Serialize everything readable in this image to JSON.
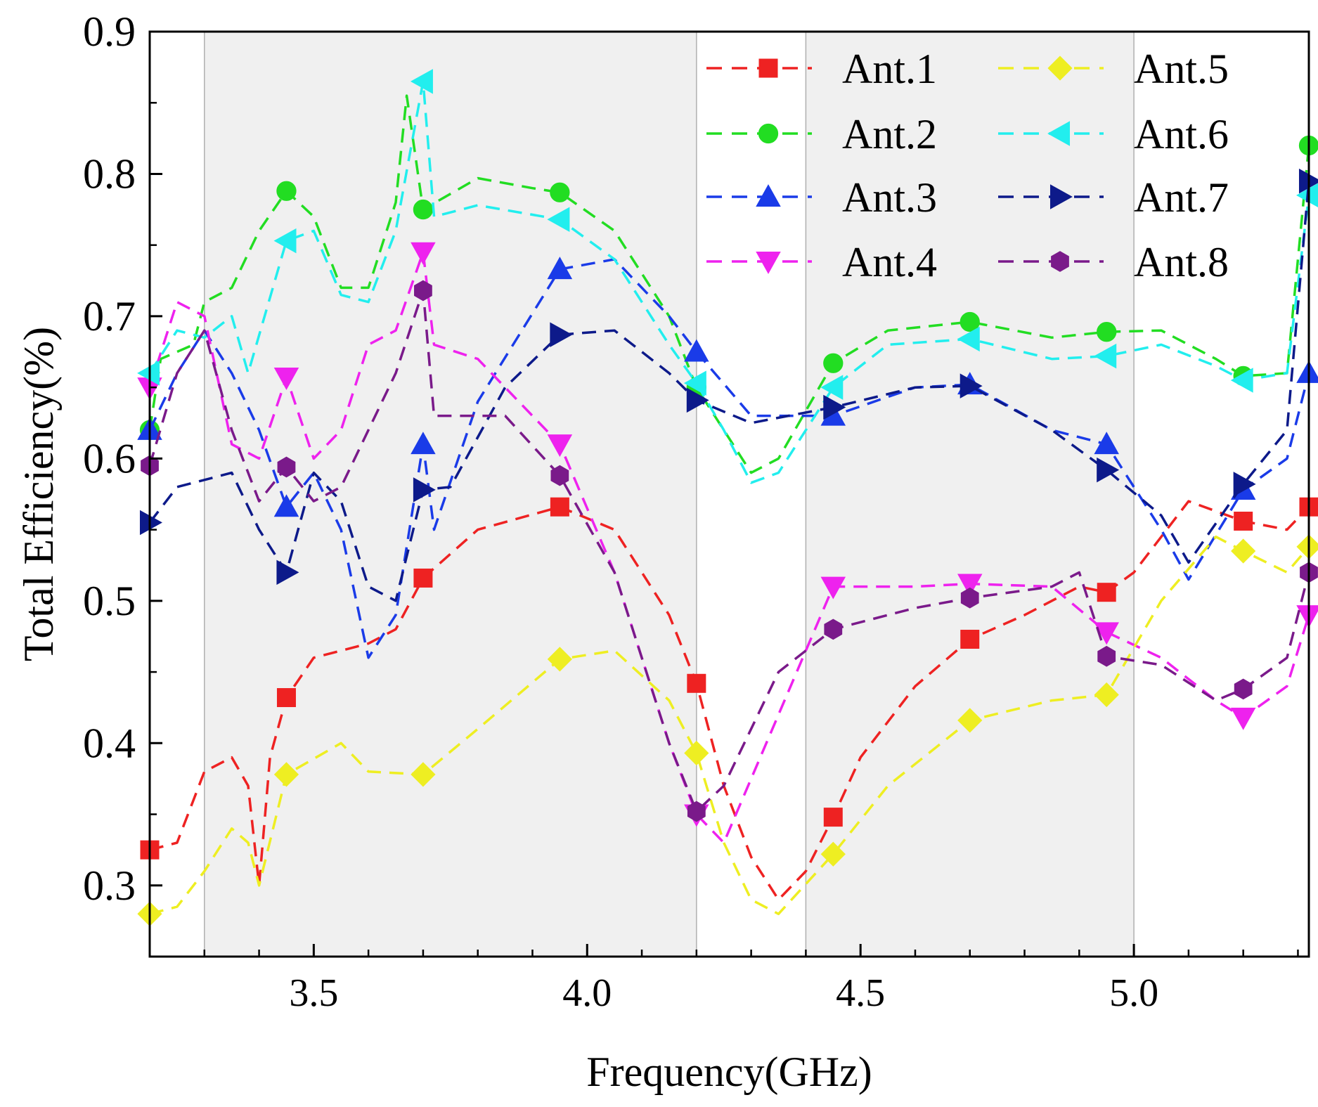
{
  "chart_data": {
    "type": "line",
    "title": "",
    "xlabel": "Frequency(GHz)",
    "ylabel": "Total Efficiency(%)",
    "xlim": [
      3.2,
      5.32
    ],
    "ylim": [
      0.25,
      0.9
    ],
    "x_ticks": [
      3.5,
      4.0,
      4.5,
      5.0
    ],
    "x_tick_labels": [
      "3.5",
      "4.0",
      "4.5",
      "5.0"
    ],
    "y_ticks": [
      0.3,
      0.4,
      0.5,
      0.6,
      0.7,
      0.8,
      0.9
    ],
    "y_tick_labels": [
      "0.3",
      "0.4",
      "0.5",
      "0.6",
      "0.7",
      "0.8",
      "0.9"
    ],
    "grid": false,
    "legend_position": "top-right",
    "shaded_bands": [
      [
        3.3,
        4.2
      ],
      [
        4.4,
        5.0
      ]
    ],
    "line_style": "dashed",
    "marker_x": [
      3.2,
      3.45,
      3.7,
      3.95,
      4.2,
      4.45,
      4.7,
      4.95,
      5.2,
      5.32
    ],
    "series": [
      {
        "name": "Ant.1",
        "color": "#ee2222",
        "marker": "square",
        "curve": [
          [
            3.2,
            0.325
          ],
          [
            3.25,
            0.33
          ],
          [
            3.3,
            0.38
          ],
          [
            3.35,
            0.39
          ],
          [
            3.38,
            0.37
          ],
          [
            3.4,
            0.3
          ],
          [
            3.42,
            0.39
          ],
          [
            3.45,
            0.432
          ],
          [
            3.5,
            0.46
          ],
          [
            3.55,
            0.465
          ],
          [
            3.6,
            0.47
          ],
          [
            3.65,
            0.48
          ],
          [
            3.7,
            0.516
          ],
          [
            3.8,
            0.55
          ],
          [
            3.95,
            0.566
          ],
          [
            4.05,
            0.55
          ],
          [
            4.15,
            0.49
          ],
          [
            4.2,
            0.442
          ],
          [
            4.25,
            0.37
          ],
          [
            4.3,
            0.32
          ],
          [
            4.35,
            0.29
          ],
          [
            4.4,
            0.31
          ],
          [
            4.45,
            0.348
          ],
          [
            4.5,
            0.39
          ],
          [
            4.6,
            0.44
          ],
          [
            4.7,
            0.473
          ],
          [
            4.8,
            0.49
          ],
          [
            4.9,
            0.51
          ],
          [
            4.95,
            0.506
          ],
          [
            5.0,
            0.52
          ],
          [
            5.1,
            0.57
          ],
          [
            5.2,
            0.556
          ],
          [
            5.28,
            0.55
          ],
          [
            5.32,
            0.566
          ]
        ],
        "markers": [
          0.325,
          0.432,
          0.516,
          0.566,
          0.442,
          0.348,
          0.473,
          0.506,
          0.556,
          0.566
        ]
      },
      {
        "name": "Ant.2",
        "color": "#22dd22",
        "marker": "circle",
        "curve": [
          [
            3.2,
            0.62
          ],
          [
            3.22,
            0.67
          ],
          [
            3.28,
            0.68
          ],
          [
            3.3,
            0.71
          ],
          [
            3.35,
            0.72
          ],
          [
            3.4,
            0.76
          ],
          [
            3.45,
            0.788
          ],
          [
            3.5,
            0.77
          ],
          [
            3.55,
            0.72
          ],
          [
            3.6,
            0.72
          ],
          [
            3.65,
            0.78
          ],
          [
            3.67,
            0.855
          ],
          [
            3.7,
            0.775
          ],
          [
            3.8,
            0.797
          ],
          [
            3.9,
            0.79
          ],
          [
            3.95,
            0.787
          ],
          [
            4.05,
            0.76
          ],
          [
            4.15,
            0.7
          ],
          [
            4.2,
            0.65
          ],
          [
            4.25,
            0.62
          ],
          [
            4.3,
            0.59
          ],
          [
            4.35,
            0.6
          ],
          [
            4.45,
            0.667
          ],
          [
            4.55,
            0.69
          ],
          [
            4.7,
            0.696
          ],
          [
            4.85,
            0.685
          ],
          [
            4.95,
            0.689
          ],
          [
            5.05,
            0.69
          ],
          [
            5.15,
            0.67
          ],
          [
            5.2,
            0.658
          ],
          [
            5.28,
            0.66
          ],
          [
            5.32,
            0.82
          ]
        ],
        "markers": [
          0.62,
          0.788,
          0.775,
          0.787,
          0.65,
          0.667,
          0.696,
          0.689,
          0.658,
          0.82
        ]
      },
      {
        "name": "Ant.3",
        "color": "#1a3be8",
        "marker": "triangle-up",
        "curve": [
          [
            3.2,
            0.62
          ],
          [
            3.25,
            0.66
          ],
          [
            3.3,
            0.69
          ],
          [
            3.35,
            0.66
          ],
          [
            3.4,
            0.62
          ],
          [
            3.45,
            0.566
          ],
          [
            3.5,
            0.59
          ],
          [
            3.55,
            0.55
          ],
          [
            3.6,
            0.46
          ],
          [
            3.65,
            0.49
          ],
          [
            3.7,
            0.61
          ],
          [
            3.72,
            0.55
          ],
          [
            3.8,
            0.64
          ],
          [
            3.95,
            0.733
          ],
          [
            4.05,
            0.74
          ],
          [
            4.15,
            0.7
          ],
          [
            4.2,
            0.675
          ],
          [
            4.3,
            0.63
          ],
          [
            4.45,
            0.63
          ],
          [
            4.6,
            0.65
          ],
          [
            4.7,
            0.652
          ],
          [
            4.85,
            0.62
          ],
          [
            4.95,
            0.61
          ],
          [
            5.05,
            0.55
          ],
          [
            5.1,
            0.515
          ],
          [
            5.2,
            0.578
          ],
          [
            5.28,
            0.6
          ],
          [
            5.32,
            0.66
          ]
        ],
        "markers": [
          0.62,
          0.566,
          0.61,
          0.733,
          0.675,
          0.63,
          0.652,
          0.61,
          0.578,
          0.66
        ]
      },
      {
        "name": "Ant.4",
        "color": "#ee22ee",
        "marker": "triangle-down",
        "curve": [
          [
            3.2,
            0.65
          ],
          [
            3.25,
            0.71
          ],
          [
            3.3,
            0.7
          ],
          [
            3.35,
            0.61
          ],
          [
            3.4,
            0.6
          ],
          [
            3.45,
            0.657
          ],
          [
            3.5,
            0.6
          ],
          [
            3.55,
            0.62
          ],
          [
            3.6,
            0.68
          ],
          [
            3.65,
            0.69
          ],
          [
            3.7,
            0.745
          ],
          [
            3.72,
            0.68
          ],
          [
            3.8,
            0.67
          ],
          [
            3.95,
            0.61
          ],
          [
            4.05,
            0.52
          ],
          [
            4.15,
            0.4
          ],
          [
            4.2,
            0.35
          ],
          [
            4.25,
            0.33
          ],
          [
            4.35,
            0.42
          ],
          [
            4.45,
            0.51
          ],
          [
            4.6,
            0.51
          ],
          [
            4.7,
            0.512
          ],
          [
            4.85,
            0.51
          ],
          [
            4.95,
            0.478
          ],
          [
            5.05,
            0.46
          ],
          [
            5.15,
            0.43
          ],
          [
            5.2,
            0.418
          ],
          [
            5.28,
            0.44
          ],
          [
            5.32,
            0.49
          ]
        ],
        "markers": [
          0.65,
          0.657,
          0.745,
          0.61,
          0.35,
          0.51,
          0.512,
          0.478,
          0.418,
          0.49
        ]
      },
      {
        "name": "Ant.5",
        "color": "#eeee22",
        "marker": "diamond",
        "curve": [
          [
            3.2,
            0.28
          ],
          [
            3.25,
            0.285
          ],
          [
            3.3,
            0.31
          ],
          [
            3.35,
            0.34
          ],
          [
            3.38,
            0.33
          ],
          [
            3.4,
            0.3
          ],
          [
            3.45,
            0.378
          ],
          [
            3.55,
            0.4
          ],
          [
            3.6,
            0.38
          ],
          [
            3.7,
            0.378
          ],
          [
            3.8,
            0.41
          ],
          [
            3.95,
            0.459
          ],
          [
            4.05,
            0.465
          ],
          [
            4.15,
            0.43
          ],
          [
            4.2,
            0.393
          ],
          [
            4.25,
            0.33
          ],
          [
            4.3,
            0.29
          ],
          [
            4.35,
            0.28
          ],
          [
            4.45,
            0.322
          ],
          [
            4.55,
            0.37
          ],
          [
            4.7,
            0.416
          ],
          [
            4.85,
            0.43
          ],
          [
            4.95,
            0.434
          ],
          [
            5.05,
            0.5
          ],
          [
            5.15,
            0.545
          ],
          [
            5.2,
            0.535
          ],
          [
            5.28,
            0.52
          ],
          [
            5.32,
            0.538
          ]
        ],
        "markers": [
          0.28,
          0.378,
          0.378,
          0.459,
          0.393,
          0.322,
          0.416,
          0.434,
          0.535,
          0.538
        ]
      },
      {
        "name": "Ant.6",
        "color": "#22eeee",
        "marker": "triangle-left",
        "curve": [
          [
            3.2,
            0.66
          ],
          [
            3.25,
            0.69
          ],
          [
            3.3,
            0.685
          ],
          [
            3.35,
            0.7
          ],
          [
            3.38,
            0.66
          ],
          [
            3.45,
            0.753
          ],
          [
            3.5,
            0.76
          ],
          [
            3.55,
            0.715
          ],
          [
            3.6,
            0.71
          ],
          [
            3.65,
            0.76
          ],
          [
            3.7,
            0.865
          ],
          [
            3.72,
            0.77
          ],
          [
            3.8,
            0.778
          ],
          [
            3.95,
            0.768
          ],
          [
            4.05,
            0.74
          ],
          [
            4.15,
            0.68
          ],
          [
            4.2,
            0.653
          ],
          [
            4.25,
            0.62
          ],
          [
            4.3,
            0.583
          ],
          [
            4.35,
            0.59
          ],
          [
            4.45,
            0.65
          ],
          [
            4.55,
            0.68
          ],
          [
            4.7,
            0.684
          ],
          [
            4.85,
            0.67
          ],
          [
            4.95,
            0.672
          ],
          [
            5.05,
            0.68
          ],
          [
            5.15,
            0.665
          ],
          [
            5.2,
            0.655
          ],
          [
            5.28,
            0.66
          ],
          [
            5.32,
            0.785
          ]
        ],
        "markers": [
          0.66,
          0.753,
          0.865,
          0.768,
          0.653,
          0.65,
          0.684,
          0.672,
          0.655,
          0.785
        ]
      },
      {
        "name": "Ant.7",
        "color": "#0d1a8a",
        "marker": "triangle-right",
        "curve": [
          [
            3.2,
            0.555
          ],
          [
            3.25,
            0.58
          ],
          [
            3.3,
            0.585
          ],
          [
            3.35,
            0.59
          ],
          [
            3.4,
            0.55
          ],
          [
            3.45,
            0.52
          ],
          [
            3.5,
            0.59
          ],
          [
            3.55,
            0.57
          ],
          [
            3.6,
            0.51
          ],
          [
            3.65,
            0.5
          ],
          [
            3.7,
            0.578
          ],
          [
            3.75,
            0.58
          ],
          [
            3.85,
            0.65
          ],
          [
            3.95,
            0.687
          ],
          [
            4.05,
            0.69
          ],
          [
            4.15,
            0.66
          ],
          [
            4.2,
            0.641
          ],
          [
            4.3,
            0.625
          ],
          [
            4.45,
            0.636
          ],
          [
            4.6,
            0.65
          ],
          [
            4.7,
            0.651
          ],
          [
            4.85,
            0.62
          ],
          [
            4.95,
            0.592
          ],
          [
            5.05,
            0.56
          ],
          [
            5.1,
            0.527
          ],
          [
            5.2,
            0.582
          ],
          [
            5.28,
            0.62
          ],
          [
            5.32,
            0.795
          ]
        ],
        "markers": [
          0.555,
          0.52,
          0.578,
          0.687,
          0.641,
          0.636,
          0.651,
          0.592,
          0.582,
          0.795
        ]
      },
      {
        "name": "Ant.8",
        "color": "#7a1a8a",
        "marker": "hexagon",
        "curve": [
          [
            3.2,
            0.595
          ],
          [
            3.25,
            0.66
          ],
          [
            3.3,
            0.69
          ],
          [
            3.35,
            0.62
          ],
          [
            3.4,
            0.57
          ],
          [
            3.45,
            0.594
          ],
          [
            3.5,
            0.57
          ],
          [
            3.55,
            0.58
          ],
          [
            3.6,
            0.62
          ],
          [
            3.65,
            0.66
          ],
          [
            3.7,
            0.718
          ],
          [
            3.72,
            0.63
          ],
          [
            3.85,
            0.63
          ],
          [
            3.95,
            0.588
          ],
          [
            4.05,
            0.52
          ],
          [
            4.15,
            0.4
          ],
          [
            4.2,
            0.352
          ],
          [
            4.25,
            0.37
          ],
          [
            4.35,
            0.45
          ],
          [
            4.45,
            0.48
          ],
          [
            4.6,
            0.495
          ],
          [
            4.7,
            0.502
          ],
          [
            4.85,
            0.51
          ],
          [
            4.9,
            0.52
          ],
          [
            4.95,
            0.461
          ],
          [
            5.05,
            0.455
          ],
          [
            5.15,
            0.43
          ],
          [
            5.2,
            0.438
          ],
          [
            5.28,
            0.46
          ],
          [
            5.32,
            0.52
          ]
        ],
        "markers": [
          0.595,
          0.594,
          0.718,
          0.588,
          0.352,
          0.48,
          0.502,
          0.461,
          0.438,
          0.52
        ]
      }
    ]
  }
}
